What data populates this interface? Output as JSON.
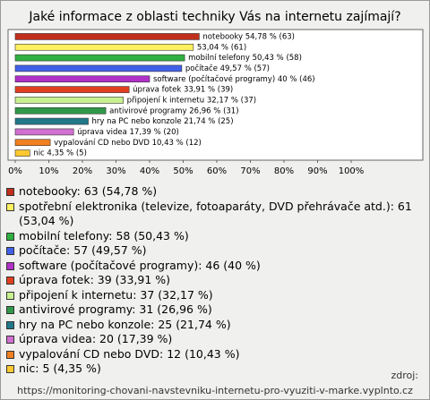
{
  "chart_data": {
    "type": "bar",
    "orientation": "horizontal",
    "title": "Jaké informace z oblasti techniky Vás na internetu zajímají?",
    "values": [
      54.78,
      53.04,
      50.43,
      49.57,
      40,
      33.91,
      32.17,
      26.96,
      21.74,
      17.39,
      10.43,
      4.35
    ],
    "value_labels": [
      "notebooky 54,78 % (63)",
      "53,04 % (61)",
      "mobilní telefony 50,43 % (58)",
      "počítače 49,57 % (57)",
      "software (počítačové programy) 40 % (46)",
      "úprava fotek 33,91 % (39)",
      "připojení k internetu 32,17 % (37)",
      "antivirové programy 26,96 % (31)",
      "hry na PC nebo konzole 21,74 % (25)",
      "úprava videa 17,39 % (20)",
      "vypalování CD nebo DVD 10,43 % (12)",
      "nic 4,35 % (5)"
    ],
    "colors": [
      "#c0301c",
      "#fff060",
      "#30b040",
      "#4060e8",
      "#b030c8",
      "#e04020",
      "#c8f090",
      "#309848",
      "#207888",
      "#d070d0",
      "#f08020",
      "#ffc830"
    ],
    "legend": [
      "notebooky: 63 (54,78 %)",
      "spotřební elektronika (televize, fotoaparáty, DVD přehrávače atd.): 61 (53,04 %)",
      "mobilní telefony: 58 (50,43 %)",
      "počítače: 57 (49,57 %)",
      "software (počítačové programy): 46 (40 %)",
      "úprava fotek: 39 (33,91 %)",
      "připojení k internetu: 37 (32,17 %)",
      "antivirové programy: 31 (26,96 %)",
      "hry na PC nebo konzole: 25 (21,74 %)",
      "úprava videa: 20 (17,39 %)",
      "vypalování CD nebo DVD: 12 (10,43 %)",
      "nic: 5 (4,35 %)"
    ],
    "xlim": [
      0,
      120
    ],
    "xticks": [
      {
        "value": 0,
        "label": "0%"
      },
      {
        "value": 10,
        "label": "10%"
      },
      {
        "value": 20,
        "label": "20%"
      },
      {
        "value": 30,
        "label": "30%"
      },
      {
        "value": 40,
        "label": "40%"
      },
      {
        "value": 50,
        "label": "50%"
      },
      {
        "value": 60,
        "label": "60%"
      },
      {
        "value": 70,
        "label": "70%"
      },
      {
        "value": 80,
        "label": "80%"
      },
      {
        "value": 90,
        "label": "90%"
      },
      {
        "value": 100,
        "label": "100%"
      }
    ],
    "grid": false
  },
  "source_label": "zdroj:",
  "source_url": "https://monitoring-chovani-navstevniku-internetu-pro-vyuziti-v-marke.vyplnto.cz"
}
